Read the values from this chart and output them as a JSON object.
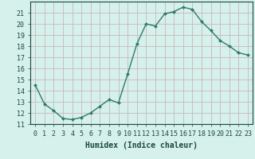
{
  "x": [
    0,
    1,
    2,
    3,
    4,
    5,
    6,
    7,
    8,
    9,
    10,
    11,
    12,
    13,
    14,
    15,
    16,
    17,
    18,
    19,
    20,
    21,
    22,
    23
  ],
  "y": [
    14.5,
    12.8,
    12.2,
    11.5,
    11.4,
    11.6,
    12.0,
    12.6,
    13.2,
    12.9,
    15.5,
    18.2,
    20.0,
    19.8,
    20.9,
    21.1,
    21.5,
    21.3,
    20.2,
    19.4,
    18.5,
    18.0,
    17.4,
    17.2
  ],
  "xlabel": "Humidex (Indice chaleur)",
  "xlim_min": -0.5,
  "xlim_max": 23.5,
  "ylim_min": 11,
  "ylim_max": 22,
  "yticks": [
    11,
    12,
    13,
    14,
    15,
    16,
    17,
    18,
    19,
    20,
    21
  ],
  "xticks": [
    0,
    1,
    2,
    3,
    4,
    5,
    6,
    7,
    8,
    9,
    10,
    11,
    12,
    13,
    14,
    15,
    16,
    17,
    18,
    19,
    20,
    21,
    22,
    23
  ],
  "line_color": "#2d7b6b",
  "marker_color": "#2d7b6b",
  "bg_color": "#d6f0ec",
  "grid_color": "#c8b8b8",
  "xlabel_fontsize": 7,
  "tick_fontsize": 6,
  "marker": "D",
  "marker_size": 2.0,
  "linewidth": 1.0,
  "tick_color": "#1a4a3a",
  "label_color": "#1a4a3a"
}
